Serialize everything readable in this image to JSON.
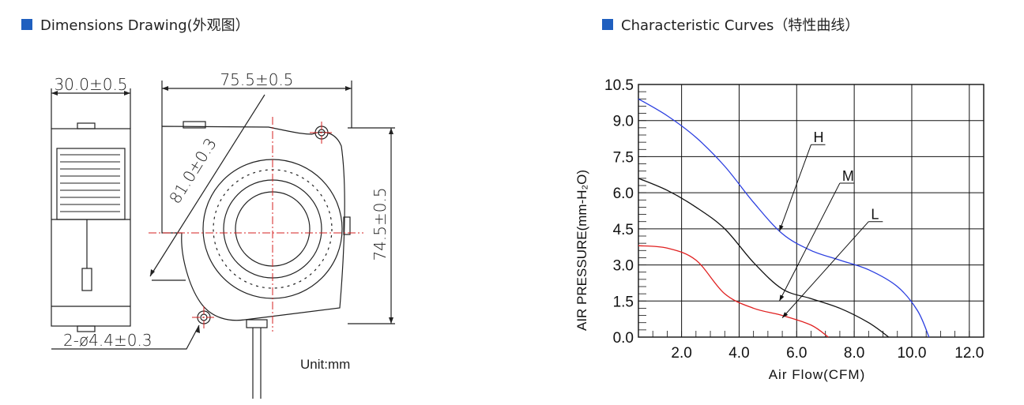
{
  "left_section": {
    "title": "Dimensions Drawing(外观图）",
    "square_color": "#1f5fbf"
  },
  "right_section": {
    "title": "Characteristic Curves（特性曲线）",
    "square_color": "#1f5fbf"
  },
  "drawing": {
    "side_width": "30.0±0.5",
    "front_width": "75.5±0.5",
    "diagonal": "81.0±0.3",
    "height": "74.5±0.5",
    "holes": "2-ø4.4±0.3",
    "unit": "Unit:mm"
  },
  "chart_data": {
    "type": "line",
    "xlabel": "Air Flow(CFM)",
    "ylabel": "AIR PRESSURE(mm-H₂O)",
    "xlim": [
      0.5,
      12.5
    ],
    "ylim": [
      0,
      10.5
    ],
    "x_ticks": [
      "2.0",
      "4.0",
      "6.0",
      "8.0",
      "10.0",
      "12.0"
    ],
    "y_ticks": [
      "0.0",
      "1.5",
      "3.0",
      "4.5",
      "6.0",
      "7.5",
      "9.0",
      "10.5"
    ],
    "grid": true,
    "series": [
      {
        "name": "H",
        "color": "#2b3fe0",
        "points": [
          [
            0.5,
            9.9
          ],
          [
            1.5,
            9.2
          ],
          [
            2.5,
            8.3
          ],
          [
            3.5,
            7.1
          ],
          [
            4.5,
            5.6
          ],
          [
            5.5,
            4.3
          ],
          [
            6.5,
            3.6
          ],
          [
            7.5,
            3.2
          ],
          [
            8.5,
            2.8
          ],
          [
            9.5,
            2.1
          ],
          [
            10.2,
            1.1
          ],
          [
            10.6,
            0.0
          ]
        ]
      },
      {
        "name": "M",
        "color": "#111111",
        "points": [
          [
            0.5,
            6.6
          ],
          [
            1.5,
            6.1
          ],
          [
            2.5,
            5.4
          ],
          [
            3.5,
            4.5
          ],
          [
            4.5,
            3.1
          ],
          [
            5.5,
            2.0
          ],
          [
            6.5,
            1.6
          ],
          [
            7.5,
            1.2
          ],
          [
            8.5,
            0.6
          ],
          [
            9.2,
            0.0
          ]
        ]
      },
      {
        "name": "L",
        "color": "#e02020",
        "points": [
          [
            0.5,
            3.8
          ],
          [
            1.5,
            3.7
          ],
          [
            2.5,
            3.2
          ],
          [
            3.5,
            1.8
          ],
          [
            4.5,
            1.2
          ],
          [
            5.5,
            0.9
          ],
          [
            6.5,
            0.5
          ],
          [
            7.1,
            0.0
          ]
        ]
      }
    ]
  }
}
